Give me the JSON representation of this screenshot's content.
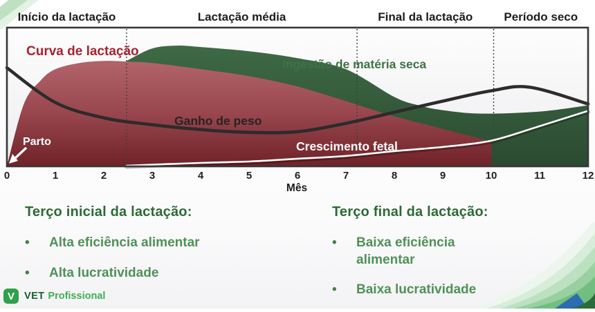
{
  "chart_data": {
    "type": "area",
    "xlabel": "Mês",
    "x_ticks": [
      0,
      1,
      2,
      3,
      4,
      5,
      6,
      7,
      8,
      9,
      10,
      11,
      12
    ],
    "x_range": [
      0,
      12
    ],
    "y_range": [
      0,
      100
    ],
    "y_note": "relative scale, no y-axis shown",
    "grid": "off",
    "phases": [
      {
        "label": "Início da lactação",
        "from": 0,
        "to": 2.47
      },
      {
        "label": "Lactação média",
        "from": 2.47,
        "to": 7.23
      },
      {
        "label": "Final da lactação",
        "from": 7.23,
        "to": 10.05
      },
      {
        "label": "Período seco",
        "from": 10.05,
        "to": 12
      }
    ],
    "series": [
      {
        "name": "Curva de lactação",
        "kind": "area",
        "color_top": "#b2646b",
        "color_bottom": "#6f2228",
        "x": [
          0,
          0.35,
          0.7,
          1,
          1.5,
          2,
          2.5,
          3,
          4,
          5,
          6,
          7,
          8,
          9,
          10
        ],
        "y": [
          0,
          45,
          62,
          70,
          74.5,
          76,
          75.5,
          74.5,
          70,
          65,
          57.5,
          47,
          36,
          27,
          18
        ]
      },
      {
        "name": "Ingestão de matéria seca",
        "kind": "area",
        "color_top": "#3e6a45",
        "color_bottom": "#2b4a31",
        "x": [
          2.47,
          3,
          3.5,
          4,
          5,
          6,
          7,
          8,
          8.5,
          9,
          9.8,
          11,
          12
        ],
        "y": [
          76,
          85,
          87,
          86,
          83,
          78,
          70,
          50,
          44,
          40.5,
          38,
          39.5,
          44
        ]
      },
      {
        "name": "Ganho de peso",
        "kind": "line",
        "color": "#2d2b2b",
        "x": [
          0,
          1,
          2,
          3,
          4,
          5,
          6,
          7,
          8,
          9,
          10,
          10.8,
          12
        ],
        "y": [
          71,
          46,
          35,
          30,
          26.5,
          24.5,
          25,
          31,
          39,
          47,
          54.5,
          57,
          45
        ]
      },
      {
        "name": "Crescimento fetal",
        "kind": "line",
        "color": "#ffffff",
        "x": [
          2.47,
          4,
          5,
          6,
          7,
          8,
          9,
          10,
          11,
          12
        ],
        "y": [
          0.5,
          2.5,
          3.5,
          5.5,
          7.5,
          11,
          14,
          18.5,
          29,
          40
        ]
      }
    ],
    "annotations": [
      {
        "label": "Parto",
        "x": 0,
        "arrow": "points to month 0 on the axis"
      }
    ]
  },
  "notes_left": {
    "title": "Terço inicial da lactação:",
    "items": [
      "Alta eficiência alimentar",
      "Alta lucratividade"
    ]
  },
  "notes_right": {
    "title": "Terço final da lactação:",
    "items": [
      "Baixa eficiência alimentar",
      "Baixa lucratividade"
    ]
  },
  "logo": {
    "mark": "V",
    "brand": "VET",
    "suffix": "Profissional"
  },
  "colors": {
    "lactation_fill_top": "#b2646b",
    "lactation_fill_bottom": "#6f2228",
    "lactation_label": "#a62330",
    "intake_fill_top": "#3e6a45",
    "intake_fill_bottom": "#2b4a31",
    "intake_label": "#3d7344",
    "weight_line": "#2d2b2b",
    "fetal_line": "#ffffff",
    "heading_green": "#2d6a35",
    "bullet_green": "#4f9156",
    "logo_green": "#2fa04c",
    "logo_dark_green": "#1d5c2d",
    "logo_light_green": "#3fae55"
  }
}
